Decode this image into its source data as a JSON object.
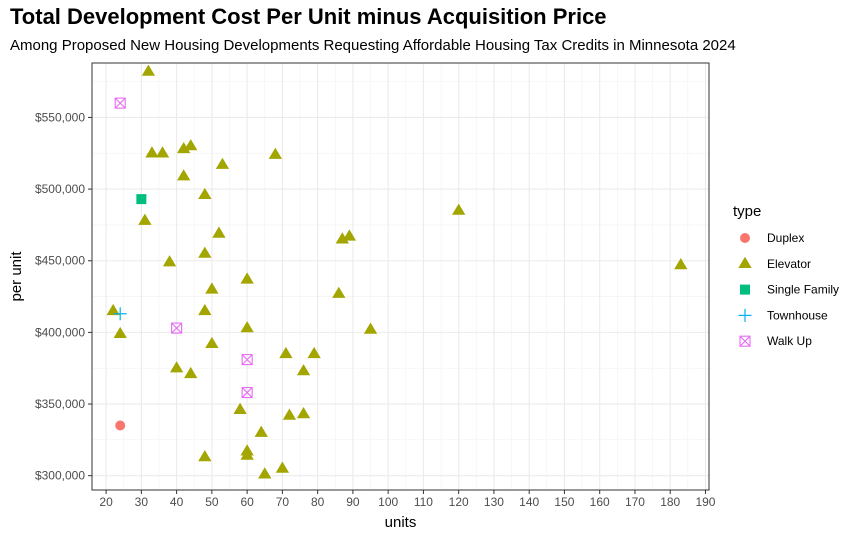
{
  "title": "Total Development Cost Per Unit minus Acquisition Price",
  "subtitle": "Among Proposed New Housing Developments Requesting Affordable Housing Tax Credits in Minnesota 2024",
  "chart_data": {
    "type": "scatter",
    "title": "Total Development Cost Per Unit minus Acquisition Price",
    "subtitle": "Among Proposed New Housing Developments Requesting Affordable Housing Tax Credits in Minnesota 2024",
    "xlabel": "units",
    "ylabel": "per unit",
    "xlim": [
      16,
      191
    ],
    "ylim": [
      290000,
      588000
    ],
    "x_ticks": [
      20,
      30,
      40,
      50,
      60,
      70,
      80,
      90,
      100,
      110,
      120,
      130,
      140,
      150,
      160,
      170,
      180,
      190
    ],
    "y_ticks": [
      300000,
      350000,
      400000,
      450000,
      500000,
      550000
    ],
    "y_tick_labels": [
      "$300,000",
      "$350,000",
      "$400,000",
      "$450,000",
      "$500,000",
      "$550,000"
    ],
    "grid": true,
    "legend_title": "type",
    "legend_position": "right",
    "series": [
      {
        "name": "Duplex",
        "color": "#F8766D",
        "shape": "circle",
        "points": [
          {
            "x": 24,
            "y": 335000
          }
        ]
      },
      {
        "name": "Elevator",
        "color": "#A3A500",
        "shape": "triangle",
        "points": [
          {
            "x": 32,
            "y": 582000
          },
          {
            "x": 33,
            "y": 525000
          },
          {
            "x": 36,
            "y": 525000
          },
          {
            "x": 42,
            "y": 528000
          },
          {
            "x": 44,
            "y": 530000
          },
          {
            "x": 42,
            "y": 509000
          },
          {
            "x": 53,
            "y": 517000
          },
          {
            "x": 68,
            "y": 524000
          },
          {
            "x": 48,
            "y": 496000
          },
          {
            "x": 31,
            "y": 478000
          },
          {
            "x": 52,
            "y": 469000
          },
          {
            "x": 38,
            "y": 449000
          },
          {
            "x": 48,
            "y": 455000
          },
          {
            "x": 60,
            "y": 437000
          },
          {
            "x": 50,
            "y": 430000
          },
          {
            "x": 87,
            "y": 465000
          },
          {
            "x": 89,
            "y": 467000
          },
          {
            "x": 86,
            "y": 427000
          },
          {
            "x": 120,
            "y": 485000
          },
          {
            "x": 183,
            "y": 447000
          },
          {
            "x": 22,
            "y": 415000
          },
          {
            "x": 24,
            "y": 399000
          },
          {
            "x": 48,
            "y": 415000
          },
          {
            "x": 60,
            "y": 403000
          },
          {
            "x": 50,
            "y": 392000
          },
          {
            "x": 95,
            "y": 402000
          },
          {
            "x": 71,
            "y": 385000
          },
          {
            "x": 79,
            "y": 385000
          },
          {
            "x": 40,
            "y": 375000
          },
          {
            "x": 44,
            "y": 371000
          },
          {
            "x": 76,
            "y": 373000
          },
          {
            "x": 58,
            "y": 346000
          },
          {
            "x": 72,
            "y": 342000
          },
          {
            "x": 76,
            "y": 343000
          },
          {
            "x": 64,
            "y": 330000
          },
          {
            "x": 60,
            "y": 317000
          },
          {
            "x": 60,
            "y": 314000
          },
          {
            "x": 48,
            "y": 313000
          },
          {
            "x": 70,
            "y": 305000
          },
          {
            "x": 65,
            "y": 301000
          }
        ]
      },
      {
        "name": "Single Family",
        "color": "#00BF7D",
        "shape": "square",
        "points": [
          {
            "x": 30,
            "y": 493000
          }
        ]
      },
      {
        "name": "Townhouse",
        "color": "#00B0F6",
        "shape": "plus",
        "points": [
          {
            "x": 24,
            "y": 413000
          }
        ]
      },
      {
        "name": "Walk Up",
        "color": "#E76BF3",
        "shape": "square-x",
        "points": [
          {
            "x": 24,
            "y": 560000
          },
          {
            "x": 40,
            "y": 403000
          },
          {
            "x": 60,
            "y": 381000
          },
          {
            "x": 60,
            "y": 358000
          }
        ]
      }
    ]
  }
}
